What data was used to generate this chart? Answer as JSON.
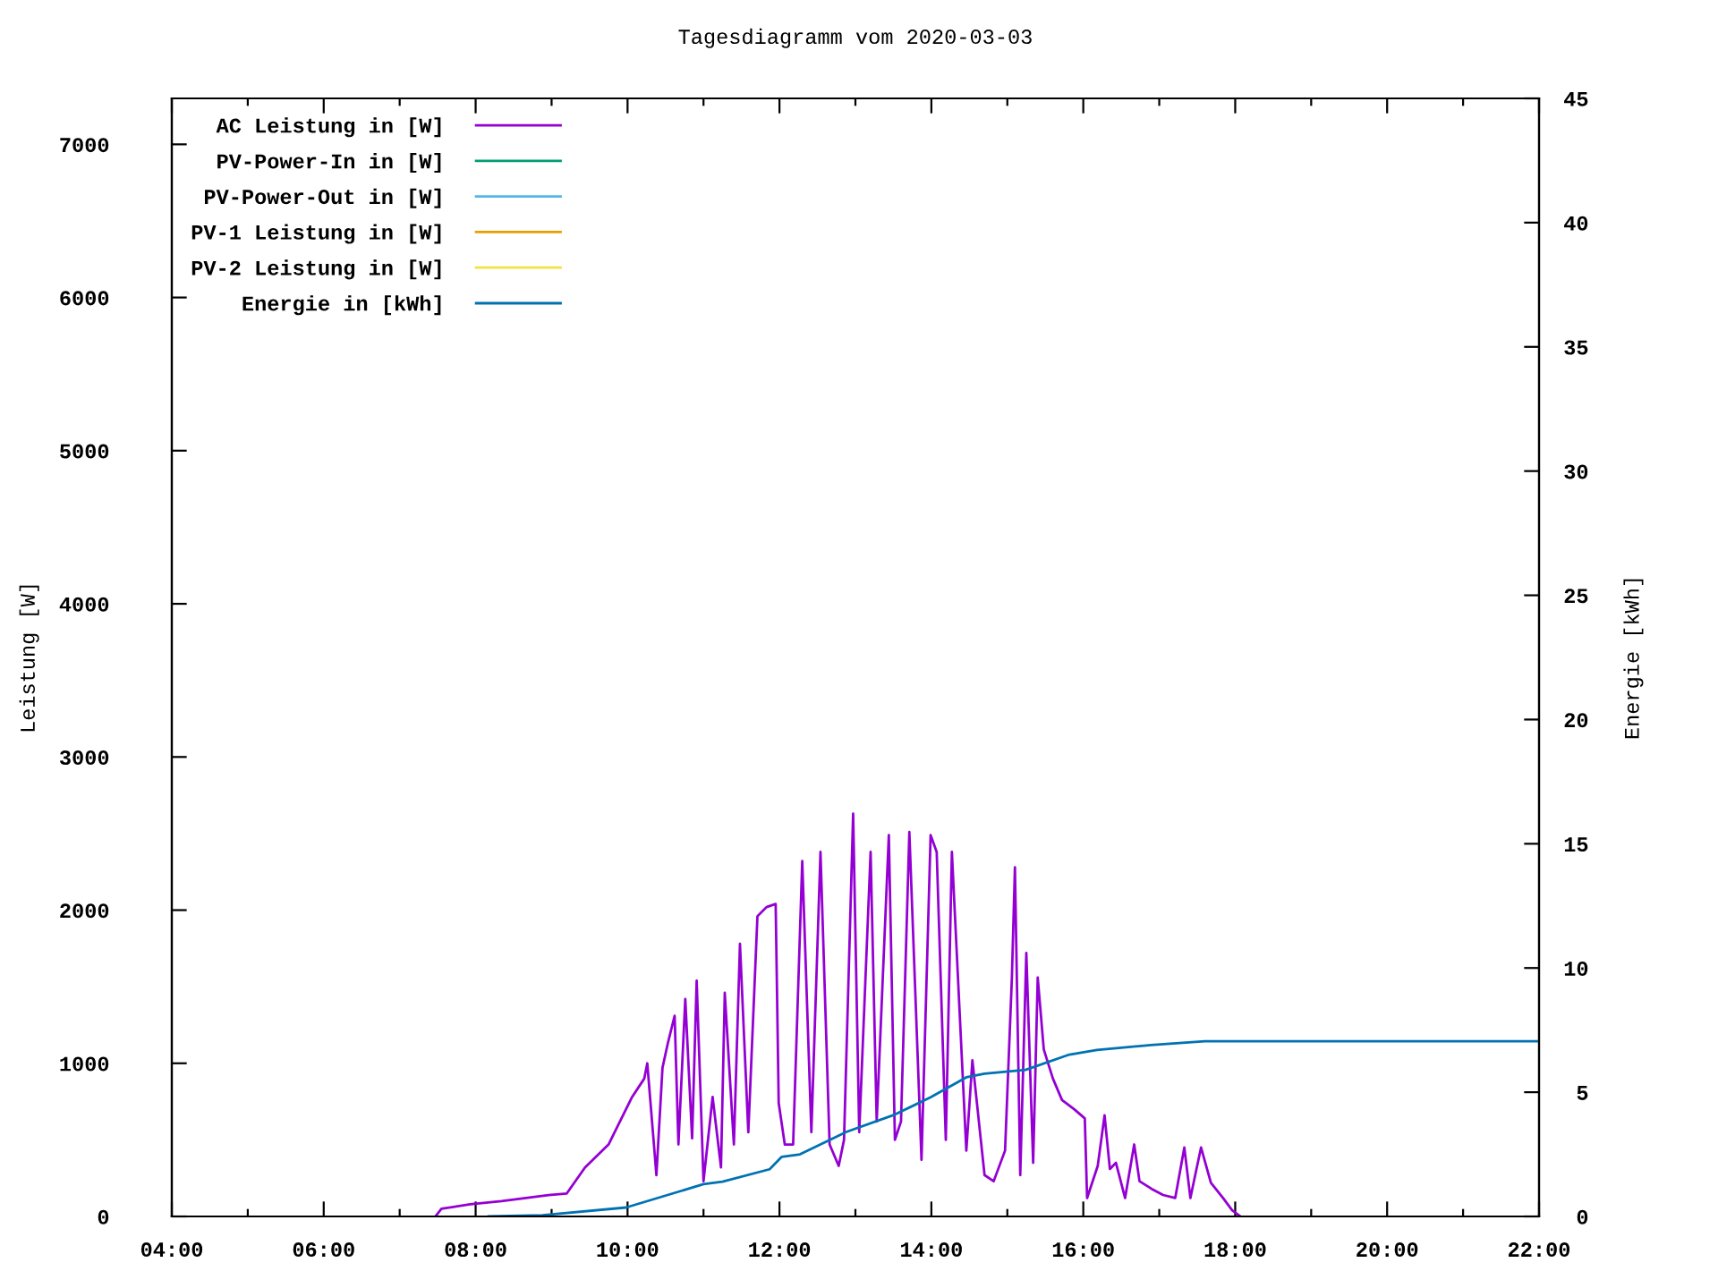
{
  "chart_data": {
    "type": "line",
    "title": "Tagesdiagramm vom 2020-03-03",
    "ylabel": "Leistung [W]",
    "y2label": "Energie [kWh]",
    "xlim": [
      4,
      22
    ],
    "xticks": [
      {
        "value": 4,
        "label": "04:00"
      },
      {
        "value": 5,
        "label": null
      },
      {
        "value": 6,
        "label": "06:00"
      },
      {
        "value": 7,
        "label": null
      },
      {
        "value": 8,
        "label": "08:00"
      },
      {
        "value": 9,
        "label": null
      },
      {
        "value": 10,
        "label": "10:00"
      },
      {
        "value": 11,
        "label": null
      },
      {
        "value": 12,
        "label": "12:00"
      },
      {
        "value": 13,
        "label": null
      },
      {
        "value": 14,
        "label": "14:00"
      },
      {
        "value": 15,
        "label": null
      },
      {
        "value": 16,
        "label": "16:00"
      },
      {
        "value": 17,
        "label": null
      },
      {
        "value": 18,
        "label": "18:00"
      },
      {
        "value": 19,
        "label": null
      },
      {
        "value": 20,
        "label": "20:00"
      },
      {
        "value": 21,
        "label": null
      },
      {
        "value": 22,
        "label": "22:00"
      }
    ],
    "ylim": [
      0,
      7300
    ],
    "yticks": [
      0,
      1000,
      2000,
      3000,
      4000,
      5000,
      6000,
      7000
    ],
    "y2lim": [
      0,
      45
    ],
    "y2ticks": [
      0,
      5,
      10,
      15,
      20,
      25,
      30,
      35,
      40,
      45
    ],
    "grid": false,
    "legend": "top left",
    "line_style": "solid",
    "marker": "none",
    "series": [
      {
        "name": "AC Leistung in [W]",
        "color": "#9400d3",
        "x": [
          7.47,
          7.55,
          7.93,
          8.34,
          8.96,
          9.2,
          9.44,
          9.75,
          10.06,
          10.22,
          10.26,
          10.38,
          10.46,
          10.53,
          10.62,
          10.67,
          10.76,
          10.85,
          10.91,
          11.0,
          11.12,
          11.23,
          11.28,
          11.4,
          11.48,
          11.59,
          11.71,
          11.83,
          11.95,
          11.99,
          12.07,
          12.18,
          12.3,
          12.42,
          12.54,
          12.66,
          12.78,
          12.85,
          12.97,
          13.05,
          13.2,
          13.28,
          13.44,
          13.52,
          13.6,
          13.71,
          13.87,
          13.99,
          14.07,
          14.19,
          14.27,
          14.46,
          14.54,
          14.7,
          14.82,
          14.97,
          15.06,
          15.1,
          15.17,
          15.25,
          15.34,
          15.4,
          15.48,
          15.6,
          15.72,
          15.88,
          16.02,
          16.05,
          16.19,
          16.28,
          16.35,
          16.43,
          16.55,
          16.67,
          16.74,
          16.9,
          17.05,
          17.21,
          17.33,
          17.41,
          17.49,
          17.55,
          17.68,
          17.84,
          17.96,
          18.07
        ],
        "values": [
          0,
          50,
          80,
          100,
          140,
          150,
          320,
          470,
          780,
          900,
          1000,
          270,
          970,
          1130,
          1310,
          470,
          1420,
          510,
          1540,
          230,
          780,
          320,
          1460,
          470,
          1780,
          550,
          1960,
          2020,
          2040,
          740,
          470,
          470,
          2320,
          550,
          2380,
          470,
          330,
          500,
          2630,
          550,
          2380,
          620,
          2490,
          500,
          620,
          2510,
          370,
          2490,
          2380,
          500,
          2380,
          430,
          1020,
          270,
          230,
          430,
          1560,
          2280,
          270,
          1720,
          350,
          1560,
          1090,
          900,
          760,
          700,
          640,
          120,
          330,
          660,
          310,
          350,
          120,
          470,
          230,
          180,
          140,
          120,
          450,
          120,
          310,
          450,
          220,
          120,
          40,
          0
        ]
      },
      {
        "name": "PV-Power-In in [W]",
        "color": "#009e73"
      },
      {
        "name": "PV-Power-Out in [W]",
        "color": "#56b4e9"
      },
      {
        "name": "PV-1 Leistung in [W]",
        "color": "#e69f00"
      },
      {
        "name": "PV-2 Leistung in [W]",
        "color": "#f0e442"
      },
      {
        "name": "Energie in [kWh]",
        "color": "#0072b2",
        "axis": "y2",
        "x": [
          8.17,
          8.88,
          9.98,
          11.0,
          11.25,
          11.87,
          12.03,
          12.27,
          12.88,
          13.52,
          13.99,
          14.46,
          14.7,
          15.24,
          15.8,
          16.18,
          16.89,
          17.6,
          18.7,
          22.0
        ],
        "values": [
          0,
          0.05,
          0.36,
          1.3,
          1.4,
          1.9,
          2.4,
          2.5,
          3.4,
          4.1,
          4.8,
          5.6,
          5.75,
          5.9,
          6.5,
          6.7,
          6.9,
          7.05,
          7.05,
          7.05
        ]
      }
    ]
  }
}
